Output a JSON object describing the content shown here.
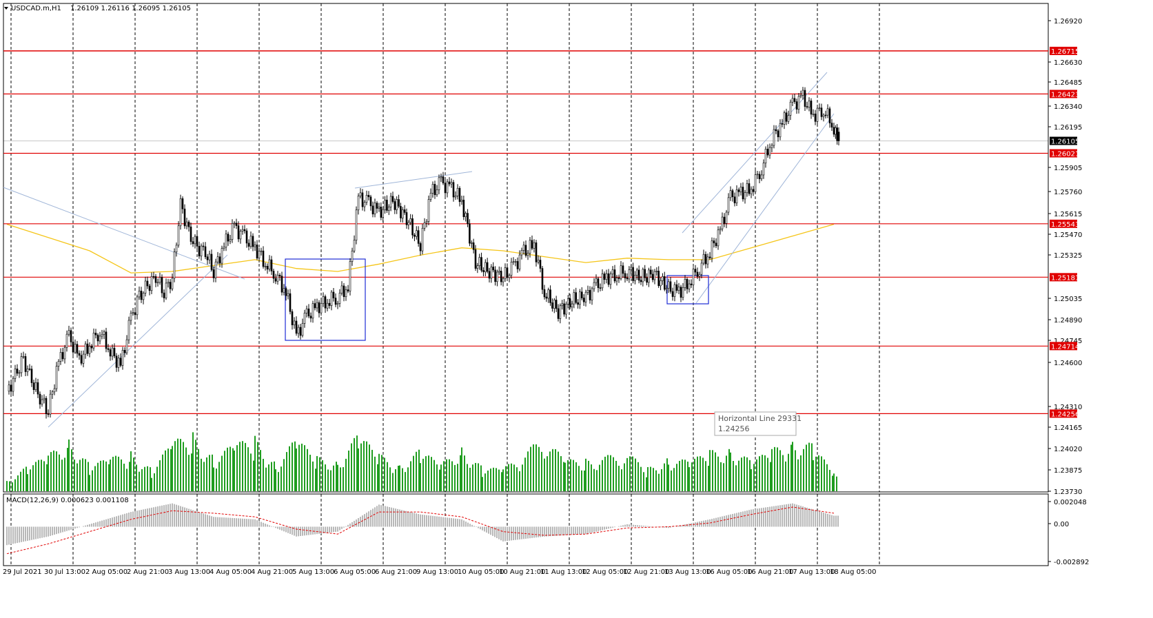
{
  "header": {
    "symbol": "USDCAD.m,H1",
    "ohlc": "1.26109 1.26116 1.26095 1.26105"
  },
  "macd_header": "MACD(12,26,9) 0.000623 0.001108",
  "tooltip": {
    "line1": "Horizontal Line 29331",
    "line2": "1.24256"
  },
  "colors": {
    "candle": "#000000",
    "hline": "#e00000",
    "ma": "#f5c518",
    "volume": "#1f9d1f",
    "macd_hist": "#b8b8b8",
    "macd_signal": "#e00000",
    "box": "#1d2bd6",
    "trend": "#9fb5d8",
    "grid": "#000000"
  },
  "chart_data": [
    {
      "type": "candlestick",
      "title": "USDCAD.m,H1",
      "x_tick_labels": [
        "29 Jul 2021",
        "30 Jul 13:00",
        "2 Aug 05:00",
        "2 Aug 21:00",
        "3 Aug 13:00",
        "4 Aug 05:00",
        "4 Aug 21:00",
        "5 Aug 13:00",
        "6 Aug 05:00",
        "6 Aug 21:00",
        "9 Aug 13:00",
        "10 Aug 05:00",
        "10 Aug 21:00",
        "11 Aug 13:00",
        "12 Aug 05:00",
        "12 Aug 21:00",
        "13 Aug 13:00",
        "16 Aug 05:00",
        "16 Aug 21:00",
        "17 Aug 13:00",
        "18 Aug 05:00"
      ],
      "y_tick_labels": [
        "1.26920",
        "1.26630",
        "1.26485",
        "1.26340",
        "1.26195",
        "1.25905",
        "1.25760",
        "1.25615",
        "1.25470",
        "1.25325",
        "1.25035",
        "1.24890",
        "1.24745",
        "1.24600",
        "1.24310",
        "1.24165",
        "1.24020",
        "1.23875",
        "1.23730"
      ],
      "ylim": [
        1.2373,
        1.2704
      ],
      "grid": "vertical-dashed",
      "current_price": "1.26105",
      "horizontal_levels": [
        "1.26715",
        "1.26423",
        "1.26021",
        "1.25543",
        "1.25181",
        "1.24714",
        "1.24256"
      ],
      "close_path": [
        [
          "29 Jul 2021",
          1.2439
        ],
        [
          "29 Jul 2021",
          1.2452
        ],
        [
          "29 Jul 2021",
          1.2462
        ],
        [
          "29 Jul 2021",
          1.2448
        ],
        [
          "29 Jul 2021",
          1.2436
        ],
        [
          "30 Jul 13:00",
          1.2428
        ],
        [
          "30 Jul 13:00",
          1.246
        ],
        [
          "30 Jul 13:00",
          1.2478
        ],
        [
          "30 Jul 13:00",
          1.2462
        ],
        [
          "2 Aug 05:00",
          1.2472
        ],
        [
          "2 Aug 05:00",
          1.2482
        ],
        [
          "2 Aug 05:00",
          1.2468
        ],
        [
          "2 Aug 05:00",
          1.2458
        ],
        [
          "2 Aug 21:00",
          1.249
        ],
        [
          "2 Aug 21:00",
          1.2505
        ],
        [
          "2 Aug 21:00",
          1.2512
        ],
        [
          "2 Aug 21:00",
          1.2518
        ],
        [
          "2 Aug 21:00",
          1.2508
        ],
        [
          "3 Aug 13:00",
          1.2518
        ],
        [
          "3 Aug 13:00",
          1.2568
        ],
        [
          "3 Aug 13:00",
          1.2548
        ],
        [
          "3 Aug 13:00",
          1.2538
        ],
        [
          "3 Aug 13:00",
          1.2535
        ],
        [
          "4 Aug 05:00",
          1.2522
        ],
        [
          "4 Aug 05:00",
          1.254
        ],
        [
          "4 Aug 05:00",
          1.2552
        ],
        [
          "4 Aug 05:00",
          1.2545
        ],
        [
          "4 Aug 21:00",
          1.2538
        ],
        [
          "4 Aug 21:00",
          1.2528
        ],
        [
          "4 Aug 21:00",
          1.252
        ],
        [
          "4 Aug 21:00",
          1.2508
        ],
        [
          "5 Aug 13:00",
          1.2478
        ],
        [
          "5 Aug 13:00",
          1.2492
        ],
        [
          "5 Aug 13:00",
          1.2498
        ],
        [
          "5 Aug 13:00",
          1.2502
        ],
        [
          "6 Aug 05:00",
          1.2505
        ],
        [
          "6 Aug 05:00",
          1.2512
        ],
        [
          "6 Aug 05:00",
          1.2572
        ],
        [
          "6 Aug 05:00",
          1.2568
        ],
        [
          "6 Aug 21:00",
          1.2562
        ],
        [
          "6 Aug 21:00",
          1.257
        ],
        [
          "6 Aug 21:00",
          1.2558
        ],
        [
          "9 Aug 13:00",
          1.254
        ],
        [
          "9 Aug 13:00",
          1.2575
        ],
        [
          "9 Aug 13:00",
          1.2582
        ],
        [
          "9 Aug 13:00",
          1.2578
        ],
        [
          "10 Aug 05:00",
          1.257
        ],
        [
          "10 Aug 05:00",
          1.2528
        ],
        [
          "10 Aug 05:00",
          1.2522
        ],
        [
          "10 Aug 21:00",
          1.2518
        ],
        [
          "10 Aug 21:00",
          1.2525
        ],
        [
          "10 Aug 21:00",
          1.2535
        ],
        [
          "10 Aug 21:00",
          1.254
        ],
        [
          "11 Aug 13:00",
          1.2508
        ],
        [
          "11 Aug 13:00",
          1.2495
        ],
        [
          "11 Aug 13:00",
          1.2502
        ],
        [
          "12 Aug 05:00",
          1.2505
        ],
        [
          "12 Aug 05:00",
          1.2512
        ],
        [
          "12 Aug 05:00",
          1.2518
        ],
        [
          "12 Aug 05:00",
          1.252
        ],
        [
          "12 Aug 21:00",
          1.2522
        ],
        [
          "12 Aug 21:00",
          1.2518
        ],
        [
          "12 Aug 21:00",
          1.252
        ],
        [
          "13 Aug 13:00",
          1.251
        ],
        [
          "13 Aug 13:00",
          1.2508
        ],
        [
          "13 Aug 13:00",
          1.2515
        ],
        [
          "13 Aug 13:00",
          1.2525
        ],
        [
          "16 Aug 05:00",
          1.2535
        ],
        [
          "16 Aug 05:00",
          1.255
        ],
        [
          "16 Aug 05:00",
          1.2572
        ],
        [
          "16 Aug 05:00",
          1.2575
        ],
        [
          "16 Aug 21:00",
          1.2578
        ],
        [
          "16 Aug 21:00",
          1.2592
        ],
        [
          "16 Aug 21:00",
          1.2612
        ],
        [
          "16 Aug 21:00",
          1.2622
        ],
        [
          "17 Aug 13:00",
          1.2635
        ],
        [
          "17 Aug 13:00",
          1.264
        ],
        [
          "17 Aug 13:00",
          1.2628
        ],
        [
          "17 Aug 13:00",
          1.2632
        ],
        [
          "18 Aug 05:00",
          1.262
        ],
        [
          "18 Aug 05:00",
          1.2612
        ],
        [
          "18 Aug 05:00",
          1.26105
        ]
      ],
      "moving_average": [
        [
          "29 Jul 2021",
          1.2554
        ],
        [
          "2 Aug 05:00",
          1.2536
        ],
        [
          "2 Aug 21:00",
          1.2521
        ],
        [
          "3 Aug 13:00",
          1.2522
        ],
        [
          "4 Aug 05:00",
          1.2526
        ],
        [
          "4 Aug 21:00",
          1.253
        ],
        [
          "5 Aug 13:00",
          1.2524
        ],
        [
          "6 Aug 05:00",
          1.2522
        ],
        [
          "6 Aug 21:00",
          1.2527
        ],
        [
          "9 Aug 13:00",
          1.2533
        ],
        [
          "10 Aug 05:00",
          1.2538
        ],
        [
          "10 Aug 21:00",
          1.2536
        ],
        [
          "11 Aug 13:00",
          1.2532
        ],
        [
          "12 Aug 05:00",
          1.2528
        ],
        [
          "12 Aug 21:00",
          1.2531
        ],
        [
          "13 Aug 13:00",
          1.253
        ],
        [
          "16 Aug 05:00",
          1.253
        ],
        [
          "16 Aug 21:00",
          1.2538
        ],
        [
          "17 Aug 13:00",
          1.2546
        ],
        [
          "18 Aug 05:00",
          1.2554
        ]
      ],
      "volume": [
        [
          "29 Jul 2021",
          0.2
        ],
        [
          "29 Jul 2021",
          0.42
        ],
        [
          "30 Jul 13:00",
          0.6
        ],
        [
          "30 Jul 13:00",
          0.95
        ],
        [
          "2 Aug 05:00",
          0.45
        ],
        [
          "2 Aug 05:00",
          0.55
        ],
        [
          "2 Aug 21:00",
          0.7
        ],
        [
          "2 Aug 21:00",
          0.38
        ],
        [
          "3 Aug 13:00",
          0.82
        ],
        [
          "3 Aug 13:00",
          1.0
        ],
        [
          "4 Aug 05:00",
          0.6
        ],
        [
          "4 Aug 05:00",
          0.78
        ],
        [
          "4 Aug 21:00",
          0.92
        ],
        [
          "4 Aug 21:00",
          0.5
        ],
        [
          "5 Aug 13:00",
          0.88
        ],
        [
          "5 Aug 13:00",
          0.58
        ],
        [
          "6 Aug 05:00",
          0.55
        ],
        [
          "6 Aug 05:00",
          0.96
        ],
        [
          "6 Aug 21:00",
          0.62
        ],
        [
          "6 Aug 21:00",
          0.5
        ],
        [
          "9 Aug 13:00",
          0.7
        ],
        [
          "9 Aug 13:00",
          0.45
        ],
        [
          "10 Aug 05:00",
          0.8
        ],
        [
          "10 Aug 05:00",
          0.4
        ],
        [
          "10 Aug 21:00",
          0.38
        ],
        [
          "11 Aug 13:00",
          0.92
        ],
        [
          "11 Aug 13:00",
          0.52
        ],
        [
          "12 Aug 05:00",
          0.55
        ],
        [
          "12 Aug 21:00",
          0.64
        ],
        [
          "12 Aug 21:00",
          0.4
        ],
        [
          "13 Aug 13:00",
          0.6
        ],
        [
          "13 Aug 13:00",
          0.5
        ],
        [
          "16 Aug 05:00",
          0.68
        ],
        [
          "16 Aug 05:00",
          0.8
        ],
        [
          "16 Aug 21:00",
          0.5
        ],
        [
          "16 Aug 21:00",
          0.7
        ],
        [
          "17 Aug 13:00",
          0.95
        ],
        [
          "17 Aug 13:00",
          0.78
        ],
        [
          "18 Aug 05:00",
          0.3
        ]
      ]
    },
    {
      "type": "area",
      "title": "MACD(12,26,9) 0.000623 0.001108",
      "y_tick_labels": [
        "0.002048",
        "0.00",
        "-0.002892"
      ],
      "ylim": [
        -0.002892,
        0.002048
      ],
      "series": [
        {
          "values": [
            [
              "29 Jul 2021",
              -0.0015
            ],
            [
              "30 Jul 13:00",
              -0.0008
            ],
            [
              "2 Aug 05:00",
              0.0002
            ],
            [
              "2 Aug 21:00",
              0.0012
            ],
            [
              "3 Aug 13:00",
              0.0019
            ],
            [
              "4 Aug 05:00",
              0.0008
            ],
            [
              "4 Aug 21:00",
              0.0006
            ],
            [
              "5 Aug 13:00",
              -0.0008
            ],
            [
              "6 Aug 05:00",
              -0.0004
            ],
            [
              "6 Aug 21:00",
              0.0018
            ],
            [
              "9 Aug 13:00",
              0.001
            ],
            [
              "10 Aug 05:00",
              0.0006
            ],
            [
              "10 Aug 21:00",
              -0.0012
            ],
            [
              "11 Aug 13:00",
              -0.0008
            ],
            [
              "12 Aug 05:00",
              -0.0006
            ],
            [
              "12 Aug 21:00",
              0.0002
            ],
            [
              "13 Aug 13:00",
              -0.0001
            ],
            [
              "16 Aug 05:00",
              0.0006
            ],
            [
              "16 Aug 21:00",
              0.0014
            ],
            [
              "17 Aug 13:00",
              0.0019
            ],
            [
              "18 Aug 05:00",
              0.0009
            ]
          ]
        },
        {
          "values": [
            [
              "29 Jul 2021",
              -0.0022
            ],
            [
              "30 Jul 13:00",
              -0.0014
            ],
            [
              "2 Aug 05:00",
              -0.0004
            ],
            [
              "2 Aug 21:00",
              0.0006
            ],
            [
              "3 Aug 13:00",
              0.0013
            ],
            [
              "4 Aug 05:00",
              0.0011
            ],
            [
              "4 Aug 21:00",
              0.0008
            ],
            [
              "5 Aug 13:00",
              -0.0002
            ],
            [
              "6 Aug 05:00",
              -0.0006
            ],
            [
              "6 Aug 21:00",
              0.0012
            ],
            [
              "9 Aug 13:00",
              0.0012
            ],
            [
              "10 Aug 05:00",
              0.0008
            ],
            [
              "10 Aug 21:00",
              -0.0004
            ],
            [
              "11 Aug 13:00",
              -0.0007
            ],
            [
              "12 Aug 05:00",
              -0.0006
            ],
            [
              "12 Aug 21:00",
              -0.0001
            ],
            [
              "13 Aug 13:00",
              0.0
            ],
            [
              "16 Aug 05:00",
              0.0003
            ],
            [
              "16 Aug 21:00",
              0.001
            ],
            [
              "17 Aug 13:00",
              0.0016
            ],
            [
              "18 Aug 05:00",
              0.0011
            ]
          ]
        }
      ]
    }
  ]
}
